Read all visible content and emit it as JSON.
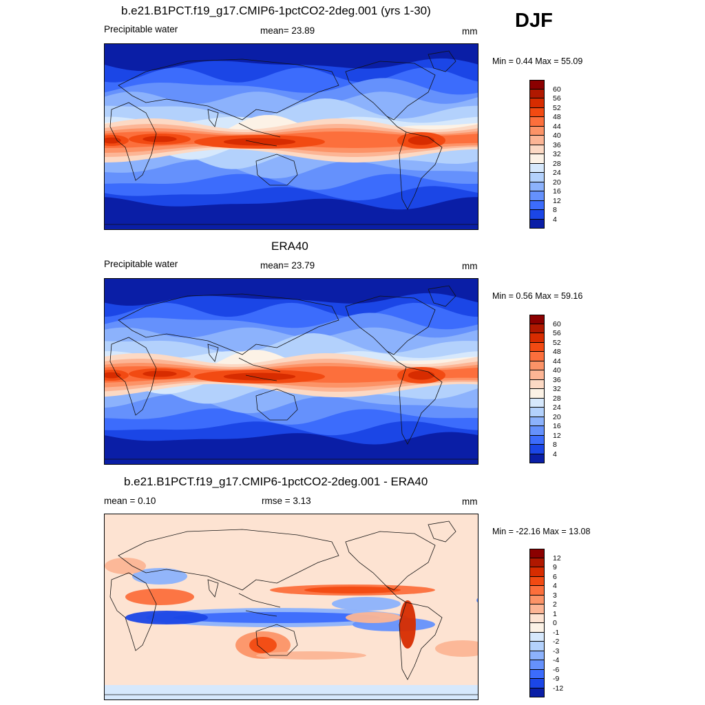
{
  "season": "DJF",
  "panels": [
    {
      "title": "b.e21.B1PCT.f19_g17.CMIP6-1pctCO2-2deg.001 (yrs 1-30)",
      "left_label": "Precipitable water",
      "center_label": "mean=  23.89",
      "right_label": "mm",
      "minmax": "Min =   0.44 Max =  55.09",
      "type": "field"
    },
    {
      "title": "ERA40",
      "left_label": "Precipitable water",
      "center_label": "mean=  23.79",
      "right_label": "mm",
      "minmax": "Min =   0.56 Max =  59.16",
      "type": "field"
    },
    {
      "title": "b.e21.B1PCT.f19_g17.CMIP6-1pctCO2-2deg.001 - ERA40",
      "left_label": "mean =   0.10",
      "center_label": "rmse =   3.13",
      "right_label": "mm",
      "minmax": "Min = -22.16 Max =  13.08",
      "type": "diff"
    }
  ],
  "colorbars": {
    "field": {
      "ticks": [
        "60",
        "56",
        "52",
        "48",
        "44",
        "40",
        "36",
        "32",
        "28",
        "24",
        "20",
        "16",
        "12",
        "8",
        "4"
      ],
      "colors": [
        "#8b0000",
        "#b01800",
        "#d72c00",
        "#f24a12",
        "#fc6f3c",
        "#fc9367",
        "#fcb595",
        "#fcd9c4",
        "#fcf2e6",
        "#d6e8fc",
        "#b3d1fc",
        "#8cb2fc",
        "#6591fc",
        "#3c6cfc",
        "#1b46e6",
        "#0a1ea6"
      ]
    },
    "diff": {
      "ticks": [
        "12",
        "9",
        "6",
        "4",
        "3",
        "2",
        "1",
        "0",
        "-1",
        "-2",
        "-3",
        "-4",
        "-6",
        "-9",
        "-12"
      ],
      "colors": [
        "#8b0000",
        "#b01800",
        "#d72c00",
        "#f24a12",
        "#fc6f3c",
        "#fc9367",
        "#fcb595",
        "#fde3d2",
        "#fcf2e6",
        "#d6e8fc",
        "#b3d1fc",
        "#8cb2fc",
        "#6591fc",
        "#3c6cfc",
        "#1b46e6",
        "#0a1ea6"
      ]
    }
  }
}
